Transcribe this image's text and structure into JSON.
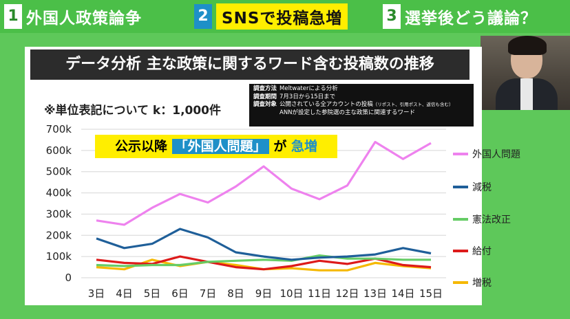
{
  "topbar": {
    "segments": [
      {
        "num": "1",
        "label": "外国人政策論争"
      },
      {
        "num": "2",
        "label": "SNSで投稿急増"
      },
      {
        "num": "3",
        "label": "選挙後どう議論？"
      }
    ],
    "active_index": 1
  },
  "headline": "データ分析 主な政策に関するワード含む投稿数の推移",
  "unit_note": "※単位表記について k：1,000件",
  "method": {
    "rows": [
      {
        "key": "調査方法",
        "value": "Meltwaterによる分析",
        "small": ""
      },
      {
        "key": "調査期間",
        "value": "7月3日から15日まで",
        "small": ""
      },
      {
        "key": "調査対象",
        "value": "公開されている全アカウントの投稿",
        "small": "（リポスト、引用ポスト、返信も含む）"
      },
      {
        "key": "",
        "value": "ANNが設定した参院選の主な政策に関連するワード",
        "small": ""
      }
    ]
  },
  "callout": {
    "pre": "公示以降",
    "keyword": "「外国人問題」",
    "mid": "が",
    "emph": "急増"
  },
  "colors": {
    "topbar": "#4bbf48",
    "accent_blue": "#1e90c8",
    "highlight": "#ffee00"
  },
  "chart_data": {
    "type": "line",
    "x": [
      "3日",
      "4日",
      "5日",
      "6日",
      "7日",
      "8日",
      "9日",
      "10日",
      "11日",
      "12日",
      "13日",
      "14日",
      "15日"
    ],
    "ylim": [
      0,
      700
    ],
    "yticks": [
      0,
      100,
      200,
      300,
      400,
      500,
      600,
      700
    ],
    "ytick_labels": [
      "0",
      "100k",
      "200k",
      "300k",
      "400k",
      "500k",
      "600k",
      "700k"
    ],
    "grid": true,
    "legend_position": "right",
    "series": [
      {
        "name": "外国人問題",
        "color": "#ee82ee",
        "values": [
          270,
          250,
          330,
          395,
          355,
          430,
          525,
          420,
          370,
          435,
          640,
          560,
          635
        ]
      },
      {
        "name": "減税",
        "color": "#1f5f99",
        "values": [
          185,
          140,
          160,
          230,
          190,
          120,
          100,
          85,
          95,
          100,
          110,
          140,
          115
        ]
      },
      {
        "name": "憲法改正",
        "color": "#66cc66",
        "values": [
          60,
          55,
          60,
          60,
          75,
          80,
          85,
          80,
          105,
          90,
          90,
          85,
          85
        ]
      },
      {
        "name": "給付",
        "color": "#dd1a1a",
        "values": [
          85,
          70,
          65,
          100,
          75,
          50,
          40,
          55,
          80,
          65,
          90,
          60,
          50
        ]
      },
      {
        "name": "増税",
        "color": "#f5b800",
        "values": [
          50,
          40,
          85,
          55,
          75,
          60,
          40,
          45,
          35,
          35,
          70,
          55,
          45
        ]
      }
    ]
  }
}
